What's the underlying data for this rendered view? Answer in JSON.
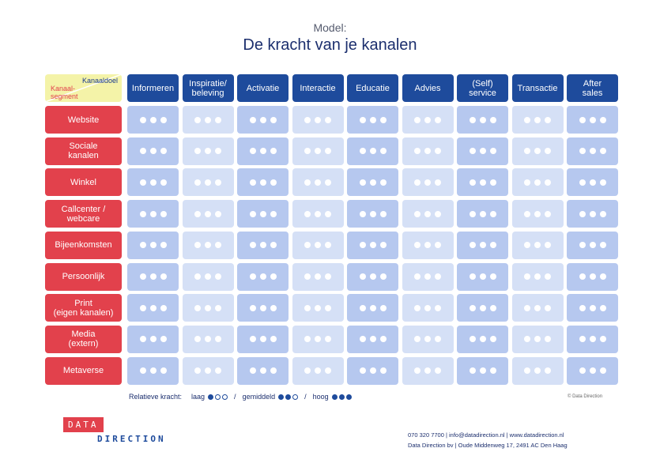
{
  "header": {
    "subtitle": "Model:",
    "title": "De kracht van je kanalen"
  },
  "corner": {
    "top_label": "Kanaaldoel",
    "bottom_label": "Kanaal-\nsegment"
  },
  "columns": [
    "Informeren",
    "Inspiratie/\nbeleving",
    "Activatie",
    "Interactie",
    "Educatie",
    "Advies",
    "(Self)\nservice",
    "Transactie",
    "After\nsales"
  ],
  "rows": [
    "Website",
    "Sociale\nkanalen",
    "Winkel",
    "Callcenter /\nwebcare",
    "Bijeenkomsten",
    "Persoonlijk",
    "Print\n(eigen kanalen)",
    "Media\n(extern)",
    "Metaverse"
  ],
  "cell_dots": 3,
  "legend": {
    "title": "Relatieve kracht:",
    "low": "laag",
    "mid": "gemiddeld",
    "high": "hoog",
    "separator": "/"
  },
  "copyright": "© Data Direction",
  "logo": {
    "line1": "DATA",
    "line2": "DIRECTION"
  },
  "contact": {
    "line1": "070 320 7700  |  info@datadirection.nl  |  www.datadirection.nl",
    "line2": "Data Direction bv  |  Oude Middenweg 17, 2491 AC Den Haag"
  },
  "colors": {
    "row_header": "#e2414c",
    "col_header": "#1e4b9c",
    "corner": "#f4f3a8",
    "cell_dark": "#b6c8ef",
    "cell_light": "#d5e0f6"
  }
}
